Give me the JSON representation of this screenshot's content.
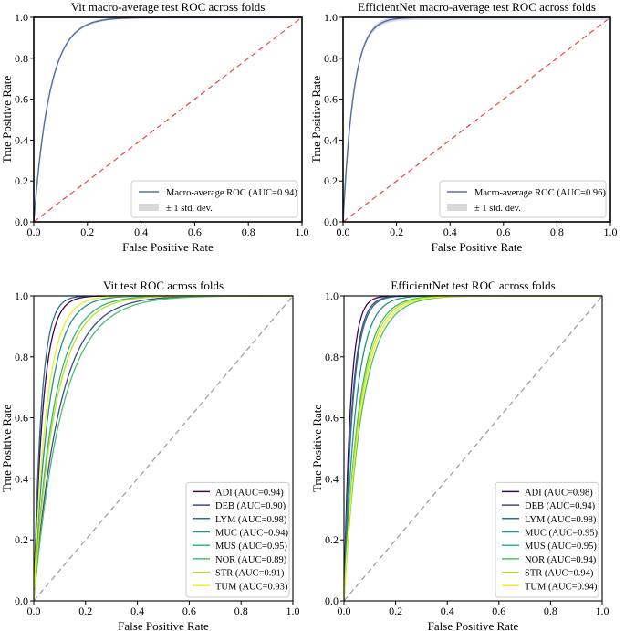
{
  "chart_data": [
    {
      "type": "line",
      "variant": "macro",
      "title": "Vit macro-average test ROC across folds",
      "xlabel": "False Positive Rate",
      "ylabel": "True Positive Rate",
      "xlim": [
        0,
        1
      ],
      "ylim": [
        0,
        1
      ],
      "xticks": [
        "0.0",
        "0.2",
        "0.4",
        "0.6",
        "0.8",
        "1.0"
      ],
      "yticks": [
        "0.0",
        "0.2",
        "0.4",
        "0.6",
        "0.8",
        "1.0"
      ],
      "series": [
        {
          "name": "Macro-average ROC (AUC=0.94)",
          "color": "#5b6fa8",
          "auc": 0.94,
          "std_band": 0.006
        }
      ],
      "std_label": "± 1 std. dev.",
      "chance_line": {
        "color": "#e8473f",
        "style": "dashed"
      },
      "legend_loc": "lower-right"
    },
    {
      "type": "line",
      "variant": "macro",
      "title": "EfficientNet macro-average test ROC across folds",
      "xlabel": "False Positive Rate",
      "ylabel": "True Positive Rate",
      "xlim": [
        0,
        1
      ],
      "ylim": [
        0,
        1
      ],
      "xticks": [
        "0.0",
        "0.2",
        "0.4",
        "0.6",
        "0.8",
        "1.0"
      ],
      "yticks": [
        "0.0",
        "0.2",
        "0.4",
        "0.6",
        "0.8",
        "1.0"
      ],
      "series": [
        {
          "name": "Macro-average ROC (AUC=0.96)",
          "color": "#5b6fa8",
          "auc": 0.96,
          "std_band": 0.012
        }
      ],
      "std_label": "± 1 std. dev.",
      "chance_line": {
        "color": "#e8473f",
        "style": "dashed"
      },
      "legend_loc": "lower-right"
    },
    {
      "type": "line",
      "variant": "perclass",
      "title": "Vit test ROC across folds",
      "xlabel": "False Positive Rate",
      "ylabel": "True Positive Rate",
      "xlim": [
        0,
        1
      ],
      "ylim": [
        0,
        1
      ],
      "xticks": [
        "0.0",
        "0.2",
        "0.4",
        "0.6",
        "0.8",
        "1.0"
      ],
      "yticks": [
        "0.0",
        "0.2",
        "0.4",
        "0.6",
        "0.8",
        "1.0"
      ],
      "series": [
        {
          "name": "ADI (AUC=0.94)",
          "color": "#3d0a4f",
          "auc": 0.94,
          "k": 28
        },
        {
          "name": "DEB (AUC=0.90)",
          "color": "#3e4a89",
          "auc": 0.9,
          "k": 10
        },
        {
          "name": "LYM (AUC=0.98)",
          "color": "#2f6f8e",
          "auc": 0.98,
          "k": 34
        },
        {
          "name": "MUC (AUC=0.94)",
          "color": "#25918c",
          "auc": 0.94,
          "k": 17
        },
        {
          "name": "MUS (AUC=0.95)",
          "color": "#35b779",
          "auc": 0.95,
          "k": 13
        },
        {
          "name": "NOR (AUC=0.89)",
          "color": "#47c16e",
          "auc": 0.89,
          "k": 9
        },
        {
          "name": "STR (AUC=0.91)",
          "color": "#bddf26",
          "auc": 0.91,
          "k": 12
        },
        {
          "name": "TUM (AUC=0.93)",
          "color": "#eef01f",
          "auc": 0.93,
          "k": 20
        }
      ],
      "chance_line": {
        "color": "#9a9a9a",
        "style": "dashed"
      },
      "legend_loc": "lower-right"
    },
    {
      "type": "line",
      "variant": "perclass",
      "title": "EfficientNet test ROC across folds",
      "xlabel": "False Positive Rate",
      "ylabel": "True Positive Rate",
      "xlim": [
        0,
        1
      ],
      "ylim": [
        0,
        1
      ],
      "xticks": [
        "0.0",
        "0.2",
        "0.4",
        "0.6",
        "0.8",
        "1.0"
      ],
      "yticks": [
        "0.0",
        "0.2",
        "0.4",
        "0.6",
        "0.8",
        "1.0"
      ],
      "series": [
        {
          "name": "ADI (AUC=0.98)",
          "color": "#3d0a4f",
          "auc": 0.98,
          "k": 40
        },
        {
          "name": "DEB (AUC=0.94)",
          "color": "#3e4a89",
          "auc": 0.94,
          "k": 32
        },
        {
          "name": "LYM (AUC=0.98)",
          "color": "#2f6f8e",
          "auc": 0.98,
          "k": 30
        },
        {
          "name": "MUC (AUC=0.95)",
          "color": "#25918c",
          "auc": 0.95,
          "k": 22
        },
        {
          "name": "MUS (AUC=0.95)",
          "color": "#35b779",
          "auc": 0.95,
          "k": 17
        },
        {
          "name": "NOR (AUC=0.94)",
          "color": "#47c16e",
          "auc": 0.94,
          "k": 14
        },
        {
          "name": "STR (AUC=0.94)",
          "color": "#bddf26",
          "auc": 0.94,
          "k": 16
        },
        {
          "name": "TUM (AUC=0.94)",
          "color": "#eef01f",
          "auc": 0.94,
          "k": 15
        }
      ],
      "chance_line": {
        "color": "#9a9a9a",
        "style": "dashed"
      },
      "legend_loc": "lower-right"
    }
  ]
}
